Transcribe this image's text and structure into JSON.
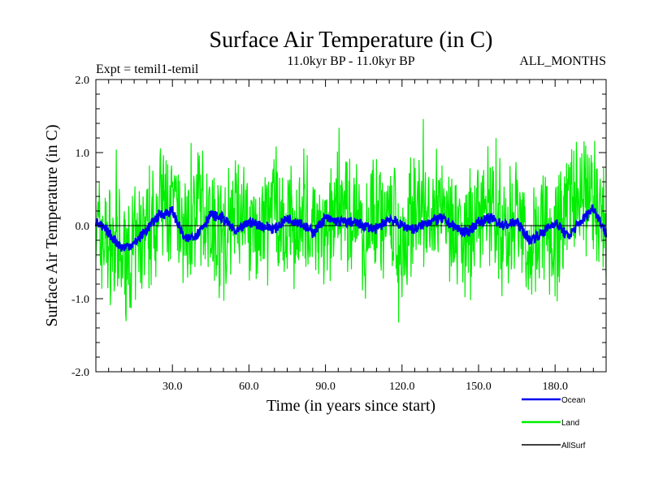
{
  "chart_data": {
    "type": "line",
    "title": "Surface Air Temperature (in C)",
    "subtitle_left": "Expt = temil1-temil",
    "subtitle_center": "11.0kyr BP - 11.0kyr BP",
    "subtitle_right": "ALL_MONTHS",
    "xlabel": "Time (in years since start)",
    "ylabel": "Surface Air Temperature (in C)",
    "xlim": [
      0,
      200
    ],
    "ylim": [
      -2.0,
      2.0
    ],
    "x_ticks": [
      30,
      60,
      90,
      120,
      150,
      180
    ],
    "x_tick_labels": [
      "30.0",
      "60.0",
      "90.0",
      "120.0",
      "150.0",
      "180.0"
    ],
    "y_ticks": [
      2.0,
      1.0,
      0.0,
      -1.0,
      -2.0
    ],
    "y_tick_labels": [
      "2.0",
      "1.0",
      "0.0",
      "-1.0",
      "-2.0"
    ],
    "grid": false,
    "legend_position": "bottom-right",
    "series": [
      {
        "name": "Land",
        "color": "#00ee00",
        "x": [
          0,
          5,
          10,
          15,
          20,
          25,
          30,
          35,
          40,
          45,
          50,
          55,
          60,
          65,
          70,
          75,
          80,
          85,
          90,
          95,
          100,
          105,
          110,
          115,
          120,
          125,
          130,
          135,
          140,
          145,
          150,
          155,
          160,
          165,
          170,
          175,
          180,
          185,
          190,
          195,
          200
        ],
        "values": [
          -0.1,
          -0.7,
          -1.4,
          -1.1,
          -0.2,
          0.9,
          0.6,
          -0.3,
          0.8,
          0.3,
          -0.6,
          0.7,
          0.2,
          -0.5,
          0.9,
          -0.4,
          0.6,
          0.1,
          -0.7,
          1.2,
          0.3,
          -0.6,
          0.8,
          0.1,
          -0.5,
          0.9,
          -0.3,
          0.7,
          0.2,
          -0.8,
          0.6,
          0.9,
          -0.4,
          0.7,
          -1.1,
          0.4,
          -0.6,
          1.0,
          0.8,
          1.3,
          -0.5
        ],
        "min": [
          -1.6,
          -1.4,
          -1.5
        ],
        "max": [
          1.38,
          1.52,
          1.55
        ]
      },
      {
        "name": "Ocean",
        "color": "#0000ee",
        "x": [
          0,
          5,
          10,
          15,
          20,
          25,
          30,
          35,
          40,
          45,
          50,
          55,
          60,
          65,
          70,
          75,
          80,
          85,
          90,
          95,
          100,
          105,
          110,
          115,
          120,
          125,
          130,
          135,
          140,
          145,
          150,
          155,
          160,
          165,
          170,
          175,
          180,
          185,
          190,
          195,
          200
        ],
        "values": [
          0.05,
          -0.1,
          -0.3,
          -0.25,
          -0.05,
          0.15,
          0.2,
          -0.2,
          -0.1,
          0.15,
          0.1,
          -0.1,
          0.05,
          0.0,
          -0.05,
          0.1,
          0.05,
          -0.1,
          0.1,
          0.05,
          0.05,
          0.0,
          -0.05,
          0.1,
          0.0,
          -0.05,
          0.05,
          0.1,
          0.0,
          -0.1,
          0.05,
          0.1,
          0.0,
          0.05,
          -0.2,
          -0.1,
          0.05,
          -0.15,
          0.05,
          0.25,
          -0.1
        ]
      },
      {
        "name": "AllSurf",
        "color": "#000000",
        "x": [
          0,
          200
        ],
        "values": [
          0.0,
          0.0
        ]
      }
    ]
  }
}
